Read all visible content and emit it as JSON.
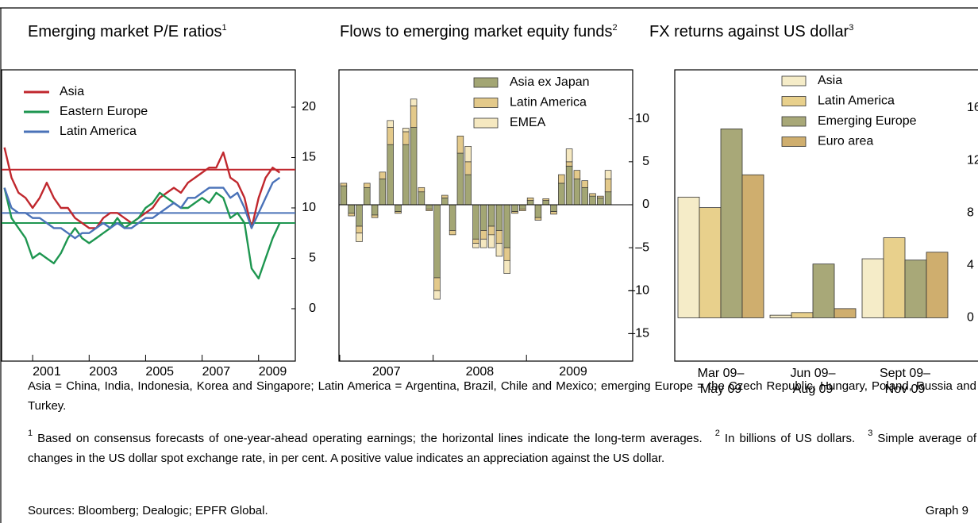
{
  "chart_data": [
    {
      "type": "line",
      "title": "Emerging market P/E ratios",
      "title_note": "1",
      "x": [
        2000,
        2000.25,
        2000.5,
        2000.75,
        2001,
        2001.25,
        2001.5,
        2001.75,
        2002,
        2002.25,
        2002.5,
        2002.75,
        2003,
        2003.25,
        2003.5,
        2003.75,
        2004,
        2004.25,
        2004.5,
        2004.75,
        2005,
        2005.25,
        2005.5,
        2005.75,
        2006,
        2006.25,
        2006.5,
        2006.75,
        2007,
        2007.25,
        2007.5,
        2007.75,
        2008,
        2008.25,
        2008.5,
        2008.75,
        2009,
        2009.25,
        2009.5,
        2009.75
      ],
      "series": [
        {
          "name": "Asia",
          "color": "#c0272d",
          "average": 13.8,
          "values": [
            16,
            13,
            11.5,
            11,
            10,
            11,
            12.5,
            11,
            10,
            10,
            9,
            8.5,
            8,
            8,
            9,
            9.5,
            9.5,
            9,
            8.5,
            9,
            9.5,
            10,
            11,
            11.5,
            12,
            11.5,
            12.5,
            13,
            13.5,
            14,
            14,
            15.5,
            13,
            12.5,
            11,
            8,
            11,
            13,
            14,
            13.5
          ]
        },
        {
          "name": "Eastern Europe",
          "color": "#1e9650",
          "average": 8.5,
          "values": [
            12,
            9,
            8,
            7,
            5,
            5.5,
            5,
            4.5,
            5.5,
            7,
            8,
            7,
            6.5,
            7,
            7.5,
            8,
            9,
            8,
            8.5,
            9,
            10,
            10.5,
            11.5,
            11,
            10.5,
            10,
            10,
            10.5,
            11,
            10.5,
            11.5,
            11,
            9,
            9.5,
            8.5,
            4,
            3,
            5,
            7,
            8.5
          ]
        },
        {
          "name": "Latin America",
          "color": "#4a72b8",
          "average": 9.5,
          "values": [
            12,
            10,
            9.5,
            9.5,
            9,
            9,
            8.5,
            8,
            8,
            7.5,
            7,
            7.5,
            7.5,
            8,
            8.5,
            8,
            8.5,
            8,
            8,
            8.5,
            9,
            9,
            9.5,
            10,
            10.5,
            10,
            11,
            11,
            11.5,
            12,
            12,
            12,
            11,
            11.5,
            10,
            8,
            9.5,
            11,
            12.5,
            13
          ]
        }
      ],
      "xlim": [
        1999.9,
        2010.3
      ],
      "xticks": [
        2001,
        2003,
        2005,
        2007,
        2009
      ],
      "ylim": [
        -5.2,
        23.7
      ],
      "yticks": [
        0,
        5,
        10,
        15,
        20
      ],
      "legend": "upper left"
    },
    {
      "type": "bar",
      "stacked": true,
      "title": "Flows to emerging market equity funds",
      "title_note": "2",
      "categories": [
        null,
        null,
        null,
        null,
        null,
        null,
        null,
        null,
        null,
        null,
        null,
        null,
        null,
        null,
        null,
        null,
        null,
        null,
        null,
        null,
        null,
        null,
        null,
        null,
        null,
        null,
        null,
        null,
        null,
        null,
        null,
        null,
        null,
        null,
        null
      ],
      "series": [
        {
          "name": "Asia ex Japan",
          "color": "#a3a674",
          "values": [
            2.2,
            -1.0,
            -2.5,
            2.0,
            -1.2,
            3.0,
            7.0,
            -0.8,
            7.0,
            9.0,
            1.5,
            -0.5,
            -8.5,
            0.8,
            -3.0,
            6.0,
            3.5,
            -4.0,
            -3.0,
            -2.5,
            -3.0,
            -5.0,
            -0.8,
            -0.5,
            0.5,
            -1.5,
            0.5,
            -0.8,
            2.5,
            4.5,
            3.0,
            2.0,
            1.0,
            0.8,
            1.5
          ]
        },
        {
          "name": "Latin America",
          "color": "#e3c98a",
          "values": [
            0.3,
            -0.3,
            -0.8,
            0.5,
            -0.3,
            0.8,
            2.0,
            -0.2,
            1.5,
            2.5,
            0.5,
            -0.2,
            -1.5,
            0.3,
            -0.5,
            2.0,
            1.5,
            -0.5,
            -1.0,
            -1.0,
            -1.5,
            -1.5,
            -0.2,
            -0.2,
            0.3,
            -0.3,
            0.2,
            -0.3,
            1.0,
            0.5,
            1.0,
            0.8,
            0.3,
            0.2,
            1.5
          ]
        },
        {
          "name": "EMEA",
          "color": "#f5e8c0",
          "values": [
            0,
            0,
            -1.0,
            0,
            0,
            0,
            0.8,
            0,
            0.4,
            0.8,
            0,
            0,
            -1.0,
            0,
            0,
            0,
            1.8,
            -0.5,
            -1.0,
            -1.5,
            -1.5,
            -1.5,
            0,
            0,
            0,
            0,
            0,
            0,
            0,
            1.5,
            0,
            0,
            0,
            0,
            1.0
          ]
        }
      ],
      "xticks": [
        {
          "value": 0,
          "label": "2007"
        },
        {
          "value": 12,
          "label": "2008"
        },
        {
          "value": 24,
          "label": "2009"
        }
      ],
      "ylim": [
        -18.2,
        15.7
      ],
      "yticks": [
        {
          "value": -15,
          "label": "–15"
        },
        {
          "value": -10,
          "label": "–10"
        },
        {
          "value": -5,
          "label": "–5"
        },
        0,
        5,
        10
      ],
      "legend": "upper right"
    },
    {
      "type": "bar",
      "title": "FX returns against US dollar",
      "title_note": "3",
      "categories": [
        "Mar 09–\nMay 09",
        "Jun 09–\nAug 09",
        "Sept 09–\nNov 09"
      ],
      "series": [
        {
          "name": "Asia",
          "color": "#f5ecc8",
          "values": [
            9.2,
            0.2,
            4.5
          ]
        },
        {
          "name": "Latin America",
          "color": "#e8d08c",
          "values": [
            8.4,
            0.4,
            6.1
          ]
        },
        {
          "name": "Emerging Europe",
          "color": "#a8a878",
          "values": [
            14.4,
            4.1,
            4.4
          ]
        },
        {
          "name": "Euro area",
          "color": "#cfae6e",
          "values": [
            10.9,
            0.7,
            5.0
          ]
        }
      ],
      "ylim": [
        -3.3,
        18.9
      ],
      "yticks": [
        0,
        4,
        8,
        12,
        16
      ],
      "legend": "upper right"
    }
  ],
  "notes": "Asia = China, India, Indonesia, Korea and Singapore; Latin America = Argentina, Brazil, Chile and Mexico; emerging Europe = the Czech Republic, Hungary, Poland, Russia and Turkey.",
  "footnotes": [
    {
      "mark": "1",
      "text": "Based on consensus forecasts of one-year-ahead operating earnings; the horizontal lines indicate the long-term averages."
    },
    {
      "mark": "2",
      "text": "In billions of US dollars."
    },
    {
      "mark": "3",
      "text": "Simple average of changes in the US dollar spot exchange rate, in per cent. A positive value indicates an appreciation against the US dollar."
    }
  ],
  "sources": "Sources: Bloomberg; Dealogic; EPFR Global.",
  "graph_label": "Graph 9"
}
